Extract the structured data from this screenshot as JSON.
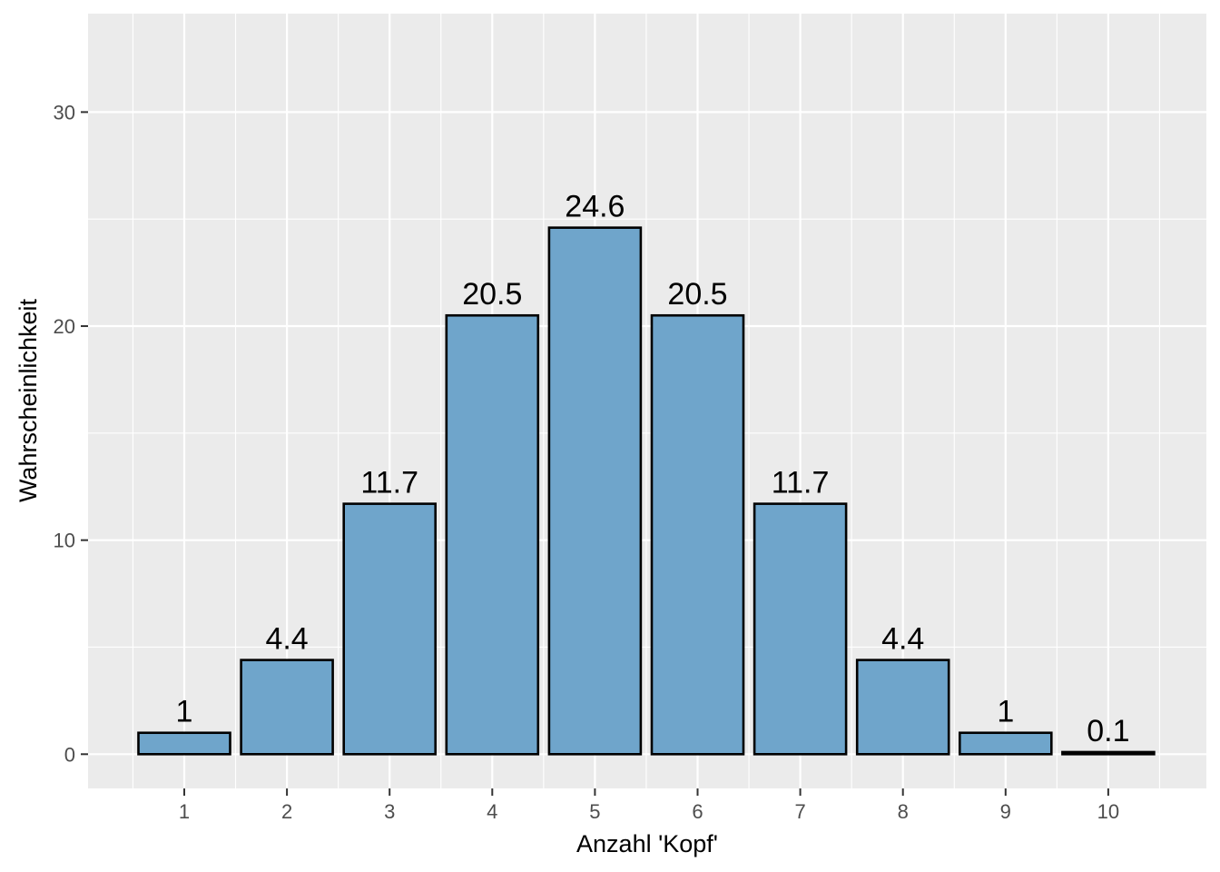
{
  "chart_data": {
    "type": "bar",
    "categories": [
      "1",
      "2",
      "3",
      "4",
      "5",
      "6",
      "7",
      "8",
      "9",
      "10"
    ],
    "values": [
      1,
      4.4,
      11.7,
      20.5,
      24.6,
      20.5,
      11.7,
      4.4,
      1,
      0.1
    ],
    "data_labels": [
      "1",
      "4.4",
      "11.7",
      "20.5",
      "24.6",
      "20.5",
      "11.7",
      "4.4",
      "1",
      "0.1"
    ],
    "xlabel": "Anzahl 'Kopf'",
    "ylabel": "Wahrscheinlichkeit",
    "ylim": [
      -1.6,
      34.6
    ],
    "yticks": [
      0,
      10,
      20,
      30
    ],
    "ytick_labels": [
      "0",
      "10",
      "20",
      "30"
    ],
    "grid": true,
    "colors": {
      "panel_background": "#ebebeb",
      "grid_major": "#ffffff",
      "bar_fill": "#6fa5cb",
      "bar_outline": "#000000",
      "tick_label": "#4d4d4d",
      "tick_mark": "#333333"
    }
  }
}
